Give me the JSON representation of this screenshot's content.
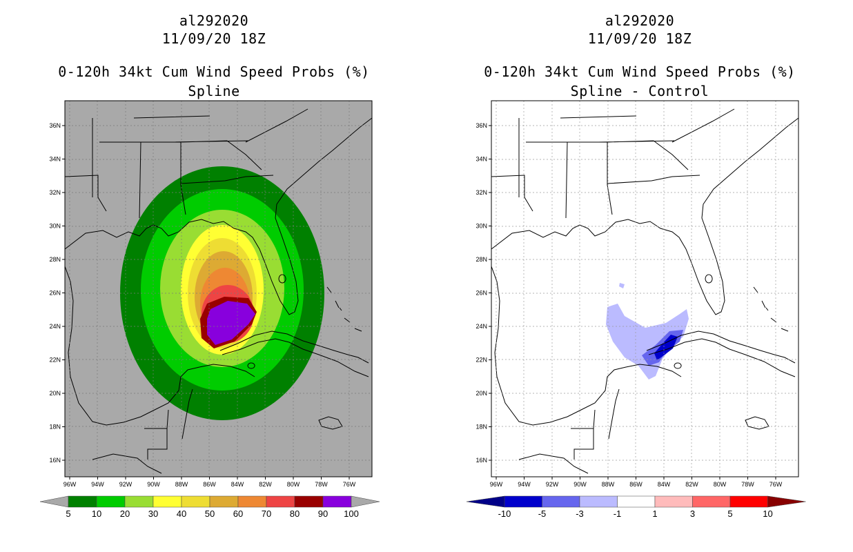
{
  "panels": [
    {
      "storm_id": "al292020",
      "datetime": "11/09/20 18Z",
      "product": "0-120h 34kt Cum Wind Speed Probs (%)",
      "subtitle": "Spline"
    },
    {
      "storm_id": "al292020",
      "datetime": "11/09/20 18Z",
      "product": "0-120h 34kt Cum Wind Speed Probs (%)",
      "subtitle": "Spline - Control"
    }
  ],
  "chart_data": {
    "type": "map",
    "lon_range": [
      -97,
      -75
    ],
    "lat_range": [
      15,
      37.5
    ],
    "lon_ticks": [
      "96W",
      "94W",
      "92W",
      "90W",
      "88W",
      "86W",
      "84W",
      "82W",
      "80W",
      "78W",
      "76W"
    ],
    "lat_ticks": [
      "16N",
      "18N",
      "20N",
      "22N",
      "24N",
      "26N",
      "28N",
      "30N",
      "32N",
      "34N",
      "36N"
    ],
    "left_colorbar": {
      "labels": [
        "5",
        "10",
        "20",
        "30",
        "40",
        "50",
        "60",
        "70",
        "80",
        "90",
        "100"
      ],
      "colors": [
        "#008000",
        "#00cc00",
        "#99dd33",
        "#ffff33",
        "#eedd33",
        "#ddaa33",
        "#ee8833",
        "#ee4444",
        "#990000",
        "#8800dd"
      ]
    },
    "right_colorbar": {
      "labels": [
        "-10",
        "-5",
        "-3",
        "-1",
        "1",
        "3",
        "5",
        "10"
      ],
      "colors": [
        "#0000cc",
        "#6666ee",
        "#bbbbff",
        "#ffffff",
        "#ffbbbb",
        "#ff6666",
        "#ff0000"
      ],
      "end_low": "#000088",
      "end_high": "#880000"
    }
  }
}
